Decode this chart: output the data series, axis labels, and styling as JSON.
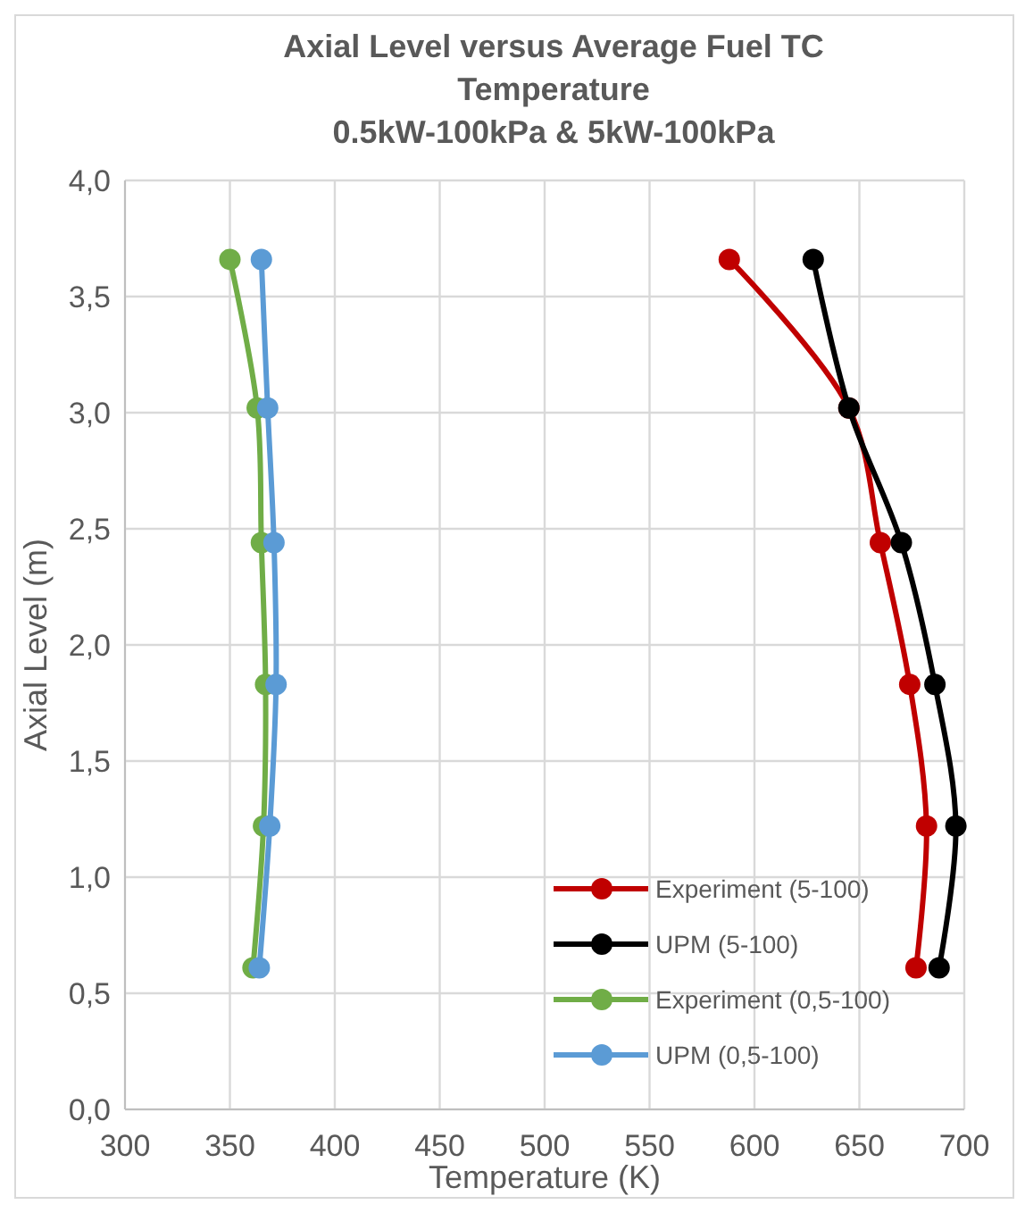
{
  "chart_data": {
    "type": "line",
    "title": "Axial Level versus Average Fuel TC Temperature",
    "subtitle": "0.5kW-100kPa & 5kW-100kPa",
    "xlabel": "Temperature (K)",
    "ylabel": "Axial Level (m)",
    "xlim": [
      300,
      700
    ],
    "xticks": [
      300,
      350,
      400,
      450,
      500,
      550,
      600,
      650,
      700
    ],
    "ylim": [
      0,
      4
    ],
    "yticks": [
      {
        "value": 0,
        "label": "0,0"
      },
      {
        "value": 0.5,
        "label": "0,5"
      },
      {
        "value": 1,
        "label": "1,0"
      },
      {
        "value": 1.5,
        "label": "1,5"
      },
      {
        "value": 2,
        "label": "2,0"
      },
      {
        "value": 2.5,
        "label": "2,5"
      },
      {
        "value": 3,
        "label": "3,0"
      },
      {
        "value": 3.5,
        "label": "3,5"
      },
      {
        "value": 4,
        "label": "4,0"
      }
    ],
    "grid": true,
    "legend": "bottom right",
    "marker": "circle",
    "line_style": "solid",
    "series": [
      {
        "name": "Experiment (5-100)",
        "color": "#c00000",
        "x": [
          588,
          645,
          660,
          674,
          682,
          677
        ],
        "values": [
          3.66,
          3.02,
          2.44,
          1.83,
          1.22,
          0.61
        ]
      },
      {
        "name": "UPM (5-100)",
        "color": "#000000",
        "x": [
          628,
          645,
          670,
          686,
          696,
          688
        ],
        "values": [
          3.66,
          3.02,
          2.44,
          1.83,
          1.22,
          0.61
        ]
      },
      {
        "name": "Experiment (0,5-100)",
        "color": "#70ad47",
        "x": [
          350,
          363,
          365,
          367,
          366,
          361
        ],
        "values": [
          3.66,
          3.02,
          2.44,
          1.83,
          1.22,
          0.61
        ]
      },
      {
        "name": "UPM (0,5-100)",
        "color": "#5b9bd5",
        "x": [
          365,
          368,
          371,
          372,
          369,
          364
        ],
        "values": [
          3.66,
          3.02,
          2.44,
          1.83,
          1.22,
          0.61
        ]
      }
    ]
  }
}
